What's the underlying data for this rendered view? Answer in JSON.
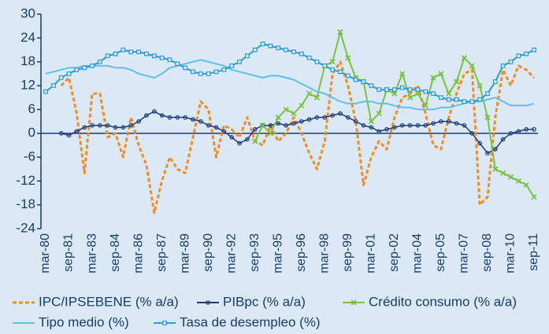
{
  "chart_data": {
    "type": "line",
    "categories": [
      "mar-80",
      null,
      null,
      "sep-81",
      null,
      null,
      "mar-83",
      null,
      null,
      "sep-84",
      null,
      null,
      "mar-86",
      null,
      null,
      "sep-87",
      null,
      null,
      "mar-89",
      null,
      null,
      "sep-90",
      null,
      null,
      "mar-92",
      null,
      null,
      "sep-93",
      null,
      null,
      "mar-95",
      null,
      null,
      "sep-96",
      null,
      null,
      "mar-98",
      null,
      null,
      "sep-99",
      null,
      null,
      "mar-01",
      null,
      null,
      "sep-02",
      null,
      null,
      "mar-04",
      null,
      null,
      "sep-05",
      null,
      null,
      "mar-07",
      null,
      null,
      "sep-08",
      null,
      null,
      "mar-10",
      null,
      null,
      "sep-11"
    ],
    "ylim": [
      -24,
      30
    ],
    "yticks": [
      -24,
      -18,
      -12,
      -6,
      0,
      6,
      12,
      18,
      24,
      30
    ],
    "grid": false,
    "series": [
      {
        "name": "IPC/IPSEBENE (% a/a)",
        "color": "#f28c28",
        "dashed": true,
        "marker": "none",
        "values": [
          null,
          null,
          12,
          14,
          5,
          -10,
          10,
          10,
          -1,
          0,
          -6,
          4,
          -3,
          -8,
          -20,
          -12,
          -6,
          -9,
          -10,
          -1,
          8,
          6,
          -6,
          2,
          1,
          -1,
          4,
          -2,
          -3,
          2,
          -2,
          0,
          4,
          0,
          -5,
          -9,
          -2,
          15,
          18,
          12,
          3,
          -13,
          -6,
          -2,
          -4,
          4,
          9,
          10,
          12,
          5,
          -3,
          -4,
          4,
          10,
          15,
          16,
          -18,
          -16,
          4,
          16,
          12,
          17,
          16,
          14
        ]
      },
      {
        "name": "PIBpc (% a/a)",
        "color": "#1f3a7a",
        "dashed": false,
        "marker": "circle",
        "values": [
          null,
          null,
          0,
          -0.5,
          0.5,
          1.5,
          2,
          2,
          2,
          1.5,
          1.5,
          2,
          3,
          4.5,
          5.5,
          4.5,
          4,
          4,
          4,
          3.5,
          3,
          2,
          1.5,
          0.5,
          -1,
          -2.5,
          -1.5,
          1,
          2,
          2,
          2.5,
          2,
          2.5,
          3,
          3.5,
          4,
          4,
          4.5,
          5,
          4,
          3,
          2,
          1.5,
          0.5,
          1,
          1.5,
          2,
          2,
          2,
          2,
          2.5,
          3,
          3,
          2.5,
          2,
          0,
          -2.5,
          -5,
          -4,
          -1.5,
          0,
          0.5,
          1,
          1
        ]
      },
      {
        "name": "Crédito consumo (% a/a)",
        "color": "#7ac143",
        "dashed": false,
        "marker": "cross",
        "values": [
          null,
          null,
          null,
          null,
          null,
          null,
          null,
          null,
          null,
          null,
          null,
          null,
          null,
          null,
          null,
          null,
          null,
          null,
          null,
          null,
          null,
          null,
          null,
          null,
          null,
          null,
          null,
          -2,
          2,
          0,
          4,
          6,
          5,
          7,
          10,
          9,
          17,
          18,
          25.5,
          19,
          14,
          13,
          3,
          5,
          11,
          10,
          15,
          9,
          10,
          7,
          14,
          15,
          10,
          13,
          19,
          17,
          12,
          4,
          -9,
          -10,
          -11,
          -12,
          -13,
          -16
        ]
      },
      {
        "name": "Tipo medio (%)",
        "color": "#5bc0eb",
        "dashed": false,
        "marker": "none",
        "values": [
          15,
          15.5,
          16,
          16.5,
          16.5,
          17,
          17,
          17,
          17,
          16.5,
          16.5,
          16,
          15,
          14.5,
          14,
          15,
          16.5,
          17,
          17.5,
          18,
          18.5,
          18,
          17.5,
          17,
          16,
          15.5,
          15,
          14.5,
          14,
          14.5,
          14.5,
          14,
          13.5,
          12.5,
          11.5,
          10.5,
          10,
          9,
          8,
          7.5,
          7.5,
          8,
          8,
          7.5,
          7.5,
          7,
          6.5,
          6.5,
          6,
          6,
          6,
          6.5,
          6.5,
          7,
          7.5,
          8,
          8,
          8.5,
          9,
          8,
          7,
          7,
          7,
          7.5
        ]
      },
      {
        "name": "Tasa de desempleo (%)",
        "color": "#2e9bd6",
        "dashed": false,
        "marker": "square",
        "values": [
          10.5,
          12,
          14,
          15,
          16,
          16.5,
          17,
          18,
          19.5,
          20,
          21,
          20.5,
          20.5,
          20,
          19.5,
          19,
          18.5,
          17.5,
          16.5,
          15.5,
          15,
          15,
          15.5,
          16,
          17,
          18,
          19.5,
          21,
          22.5,
          22,
          21.5,
          21,
          20.5,
          20,
          19,
          18,
          17,
          16,
          15.5,
          14.5,
          13.5,
          13,
          12,
          11,
          11,
          11,
          11.5,
          11,
          11,
          10.5,
          10,
          9,
          8.5,
          8.5,
          8,
          8,
          8.5,
          10,
          13,
          17,
          18,
          19.5,
          20,
          21
        ]
      }
    ]
  }
}
